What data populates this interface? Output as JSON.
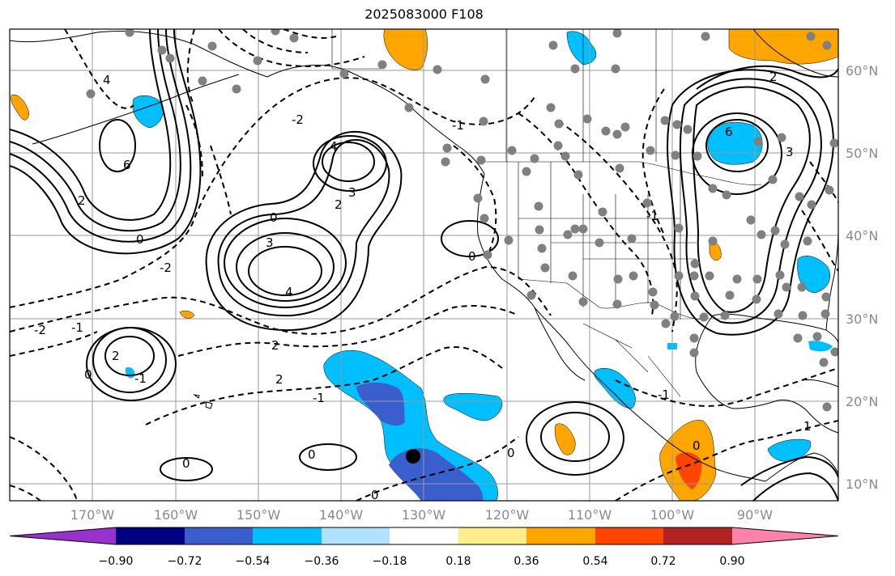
{
  "title": "2025083000 F108",
  "lon_labels": [
    "170°W",
    "160°W",
    "150°W",
    "140°W",
    "130°W",
    "120°W",
    "110°W",
    "100°W",
    "90°W"
  ],
  "lat_labels": [
    "60°N",
    "50°N",
    "40°N",
    "30°N",
    "20°N",
    "10°N"
  ],
  "colorbar": {
    "ticks": [
      "−0.90",
      "−0.72",
      "−0.54",
      "−0.36",
      "−0.18",
      "0.18",
      "0.36",
      "0.54",
      "0.72",
      "0.90"
    ],
    "colors": [
      "#9932cc",
      "#000080",
      "#3a5fcd",
      "#00bfff",
      "#b0e2ff",
      "#ffffff",
      "#ffec8b",
      "#ffa500",
      "#ff4500",
      "#b22222",
      "#ff82ab"
    ]
  },
  "contour_labels": [
    "4",
    "6",
    "2",
    "0",
    "-2",
    "4",
    "3",
    "2",
    "3",
    "4",
    "0",
    "-2",
    "-1",
    "2",
    "-1",
    "0",
    "2",
    "2",
    "0",
    "-1",
    "-2",
    "-1",
    "0",
    "0",
    "6",
    "3",
    "2",
    "-1",
    "0",
    "-1",
    "0",
    "1",
    "0"
  ],
  "station_dot_color": "#808080",
  "marker_color": "#000000"
}
